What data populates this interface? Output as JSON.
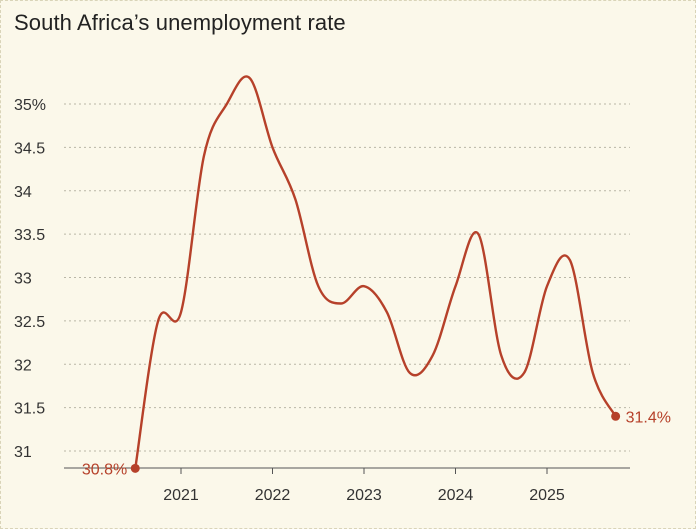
{
  "chart_data": {
    "type": "line",
    "title": "South Africa’s unemployment rate",
    "xlabel": "",
    "ylabel": "",
    "x_ticks": [
      2021,
      2022,
      2023,
      2024,
      2025
    ],
    "y_ticks": [
      {
        "value": 31,
        "label": "31"
      },
      {
        "value": 31.5,
        "label": "31.5"
      },
      {
        "value": 32,
        "label": "32"
      },
      {
        "value": 32.5,
        "label": "32.5"
      },
      {
        "value": 33,
        "label": "33"
      },
      {
        "value": 33.5,
        "label": "33.5"
      },
      {
        "value": 34,
        "label": "34"
      },
      {
        "value": 34.5,
        "label": "34.5"
      },
      {
        "value": 35,
        "label": "35%"
      }
    ],
    "xlim": [
      2020.4,
      2026.0
    ],
    "ylim": [
      30.8,
      35.6
    ],
    "grid": true,
    "series": [
      {
        "color": "#b6412a",
        "points": [
          {
            "x": 2020.5,
            "y": 30.8
          },
          {
            "x": 2020.75,
            "y": 32.5
          },
          {
            "x": 2021.0,
            "y": 32.6
          },
          {
            "x": 2021.25,
            "y": 34.4
          },
          {
            "x": 2021.5,
            "y": 35.0
          },
          {
            "x": 2021.75,
            "y": 35.3
          },
          {
            "x": 2022.0,
            "y": 34.5
          },
          {
            "x": 2022.25,
            "y": 33.9
          },
          {
            "x": 2022.5,
            "y": 32.9
          },
          {
            "x": 2022.75,
            "y": 32.7
          },
          {
            "x": 2023.0,
            "y": 32.9
          },
          {
            "x": 2023.25,
            "y": 32.6
          },
          {
            "x": 2023.5,
            "y": 31.9
          },
          {
            "x": 2023.75,
            "y": 32.1
          },
          {
            "x": 2024.0,
            "y": 32.9
          },
          {
            "x": 2024.25,
            "y": 33.5
          },
          {
            "x": 2024.5,
            "y": 32.1
          },
          {
            "x": 2024.75,
            "y": 31.9
          },
          {
            "x": 2025.0,
            "y": 32.9
          },
          {
            "x": 2025.25,
            "y": 33.2
          },
          {
            "x": 2025.5,
            "y": 31.9
          },
          {
            "x": 2025.75,
            "y": 31.4
          }
        ]
      }
    ],
    "annotations": {
      "start_label": "30.8%",
      "end_label": "31.4%"
    }
  }
}
